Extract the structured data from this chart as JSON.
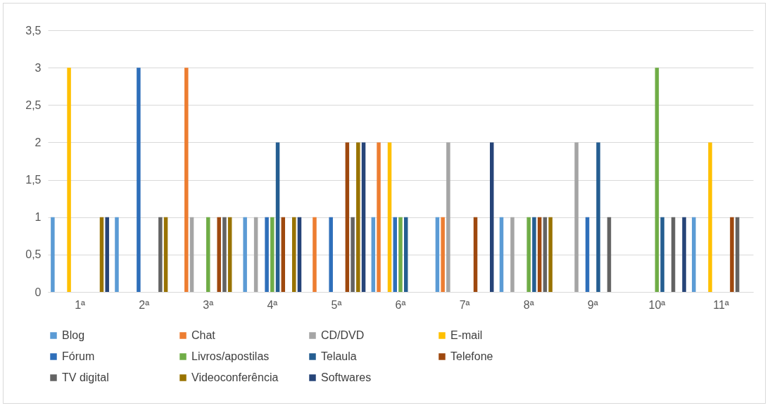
{
  "chart_data": {
    "type": "bar",
    "categories": [
      "1ª",
      "2ª",
      "3ª",
      "4ª",
      "5ª",
      "6ª",
      "7ª",
      "8ª",
      "9ª",
      "10ª",
      "11ª"
    ],
    "series": [
      {
        "name": "Blog",
        "color": "#5b9bd5",
        "values": [
          1,
          1,
          0,
          1,
          0,
          1,
          1,
          1,
          0,
          0,
          1
        ]
      },
      {
        "name": "Chat",
        "color": "#ed7d31",
        "values": [
          0,
          0,
          3,
          0,
          1,
          2,
          1,
          0,
          0,
          0,
          0
        ]
      },
      {
        "name": "CD/DVD",
        "color": "#a5a5a5",
        "values": [
          0,
          0,
          1,
          1,
          0,
          0,
          2,
          1,
          2,
          0,
          0
        ]
      },
      {
        "name": "E-mail",
        "color": "#ffc000",
        "values": [
          3,
          0,
          0,
          0,
          0,
          2,
          0,
          0,
          0,
          0,
          2
        ]
      },
      {
        "name": "Fórum",
        "color": "#2e6fba",
        "values": [
          0,
          3,
          0,
          1,
          1,
          1,
          0,
          0,
          1,
          0,
          0
        ]
      },
      {
        "name": "Livros/apostilas",
        "color": "#70ad47",
        "values": [
          0,
          0,
          1,
          1,
          0,
          1,
          0,
          1,
          0,
          3,
          0
        ]
      },
      {
        "name": "Telaula",
        "color": "#255e91",
        "values": [
          0,
          0,
          0,
          2,
          0,
          1,
          0,
          1,
          2,
          1,
          0
        ]
      },
      {
        "name": "Telefone",
        "color": "#9e480e",
        "values": [
          0,
          0,
          1,
          1,
          2,
          0,
          1,
          1,
          0,
          0,
          1
        ]
      },
      {
        "name": "TV digital",
        "color": "#636363",
        "values": [
          0,
          1,
          1,
          0,
          1,
          0,
          0,
          1,
          1,
          1,
          1
        ]
      },
      {
        "name": "Videoconferência",
        "color": "#997300",
        "values": [
          1,
          1,
          1,
          1,
          2,
          0,
          0,
          1,
          0,
          0,
          0
        ]
      },
      {
        "name": "Softwares",
        "color": "#264478",
        "values": [
          1,
          0,
          0,
          1,
          2,
          0,
          2,
          0,
          0,
          1,
          0
        ]
      }
    ],
    "ylim": [
      0,
      3.5
    ],
    "yticks": [
      0,
      {
        "value": 0.5,
        "label": "0,5"
      },
      1,
      {
        "value": 1.5,
        "label": "1,5"
      },
      2,
      {
        "value": 2.5,
        "label": "2,5"
      },
      3,
      {
        "value": 3.5,
        "label": "3,5"
      }
    ],
    "grid": "y",
    "legend": "bottom"
  }
}
